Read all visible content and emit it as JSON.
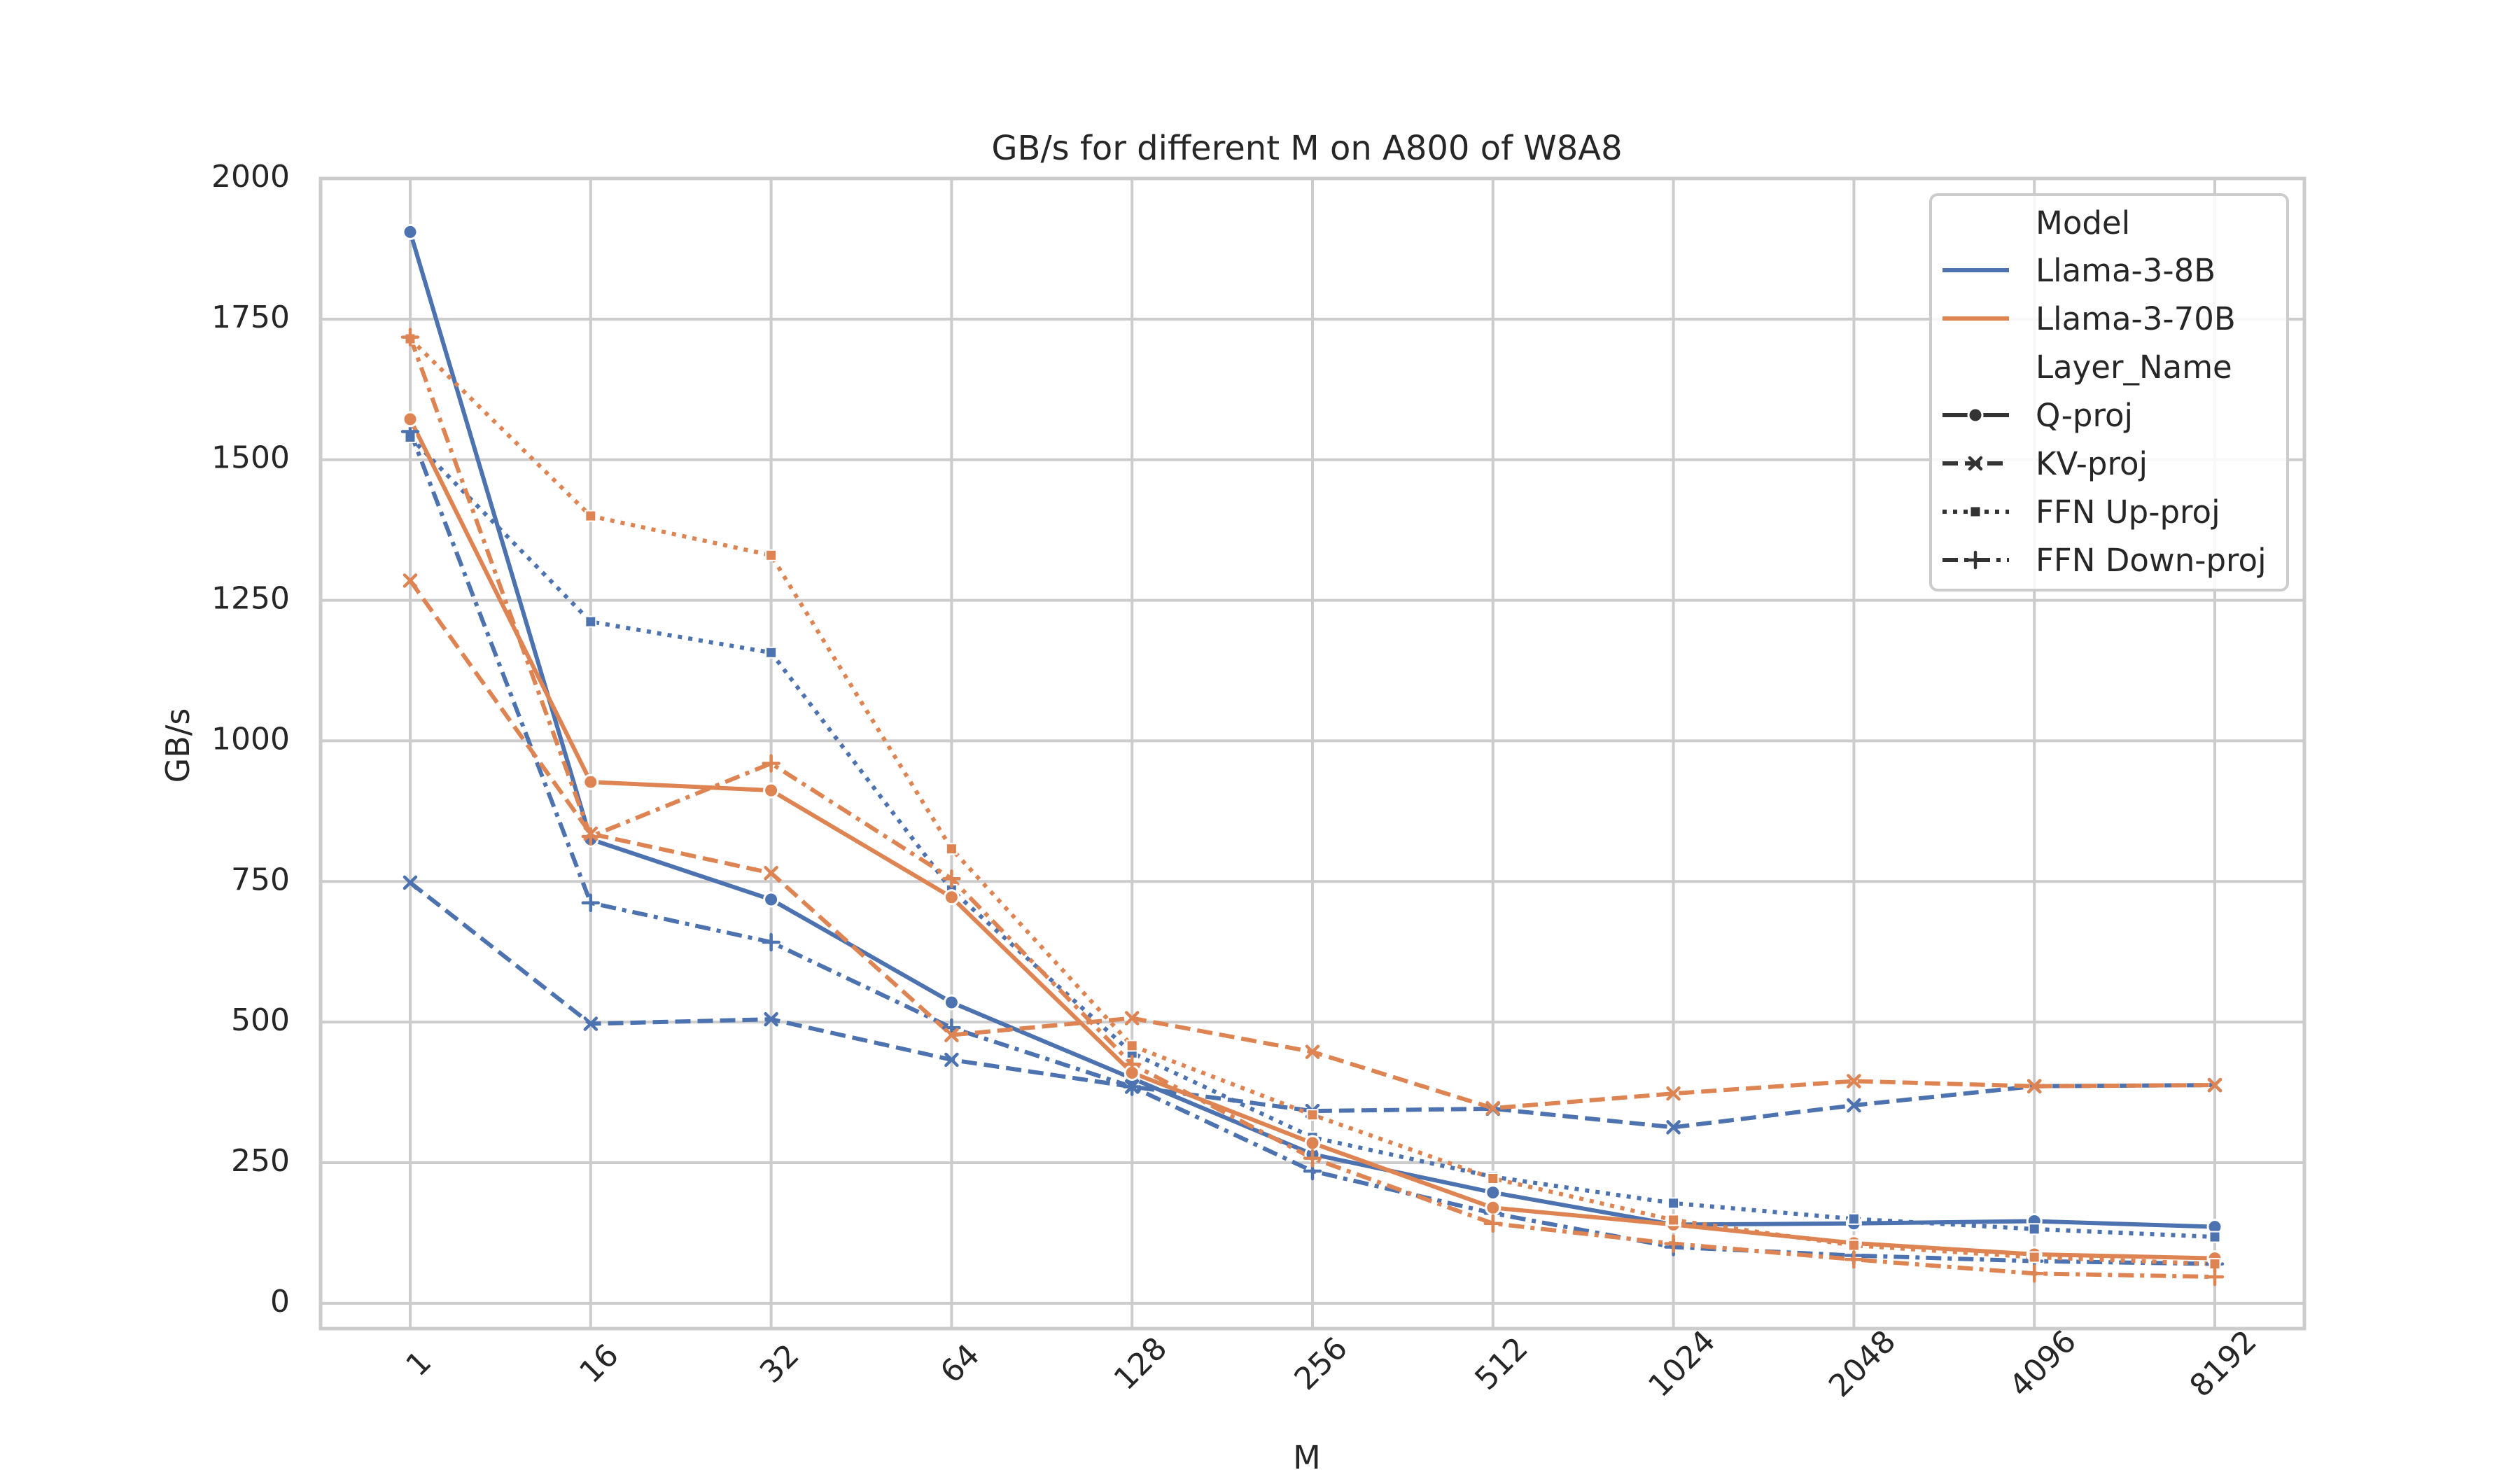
{
  "chart_data": {
    "type": "line",
    "title": "GB/s for different M on A800 of W8A8",
    "xlabel": "M",
    "ylabel": "GB/s",
    "categories": [
      "1",
      "16",
      "32",
      "64",
      "128",
      "256",
      "512",
      "1024",
      "2048",
      "4096",
      "8192"
    ],
    "ylim": [
      -45,
      2000
    ],
    "yticks": [
      0,
      250,
      500,
      750,
      1000,
      1250,
      1500,
      1750,
      2000
    ],
    "grid": true,
    "legend_position": "top-right",
    "legend": {
      "hue_title": "Model",
      "style_title": "Layer_Name",
      "models": [
        {
          "name": "Llama-3-8B",
          "color": "#4c72b0"
        },
        {
          "name": "Llama-3-70B",
          "color": "#dd8452"
        }
      ],
      "layers": [
        {
          "name": "Q-proj",
          "dash": "solid",
          "marker": "circle"
        },
        {
          "name": "KV-proj",
          "dash": "dashed",
          "marker": "x"
        },
        {
          "name": "FFN Up-proj",
          "dash": "dotted",
          "marker": "square"
        },
        {
          "name": "FFN Down-proj",
          "dash": "dashdot",
          "marker": "plus"
        }
      ]
    },
    "series": [
      {
        "model": "Llama-3-8B",
        "layer": "Q-proj",
        "values": [
          1905,
          825,
          718,
          535,
          400,
          265,
          197,
          140,
          142,
          146,
          136
        ]
      },
      {
        "model": "Llama-3-8B",
        "layer": "KV-proj",
        "values": [
          748,
          497,
          505,
          433,
          385,
          342,
          346,
          313,
          352,
          386,
          388
        ]
      },
      {
        "model": "Llama-3-8B",
        "layer": "FFN Up-proj",
        "values": [
          1540,
          1212,
          1157,
          735,
          445,
          295,
          225,
          178,
          150,
          132,
          118
        ]
      },
      {
        "model": "Llama-3-8B",
        "layer": "FFN Down-proj",
        "values": [
          1550,
          712,
          642,
          490,
          385,
          235,
          160,
          100,
          85,
          75,
          70
        ]
      },
      {
        "model": "Llama-3-70B",
        "layer": "Q-proj",
        "values": [
          1572,
          927,
          912,
          722,
          410,
          285,
          170,
          140,
          107,
          87,
          80
        ]
      },
      {
        "model": "Llama-3-70B",
        "layer": "KV-proj",
        "values": [
          1285,
          835,
          765,
          477,
          507,
          447,
          347,
          373,
          395,
          386,
          388
        ]
      },
      {
        "model": "Llama-3-70B",
        "layer": "FFN Up-proj",
        "values": [
          1715,
          1400,
          1330,
          808,
          458,
          335,
          222,
          148,
          103,
          82,
          70
        ]
      },
      {
        "model": "Llama-3-70B",
        "layer": "FFN Down-proj",
        "values": [
          1718,
          830,
          960,
          755,
          425,
          258,
          142,
          106,
          78,
          53,
          47
        ]
      }
    ]
  }
}
